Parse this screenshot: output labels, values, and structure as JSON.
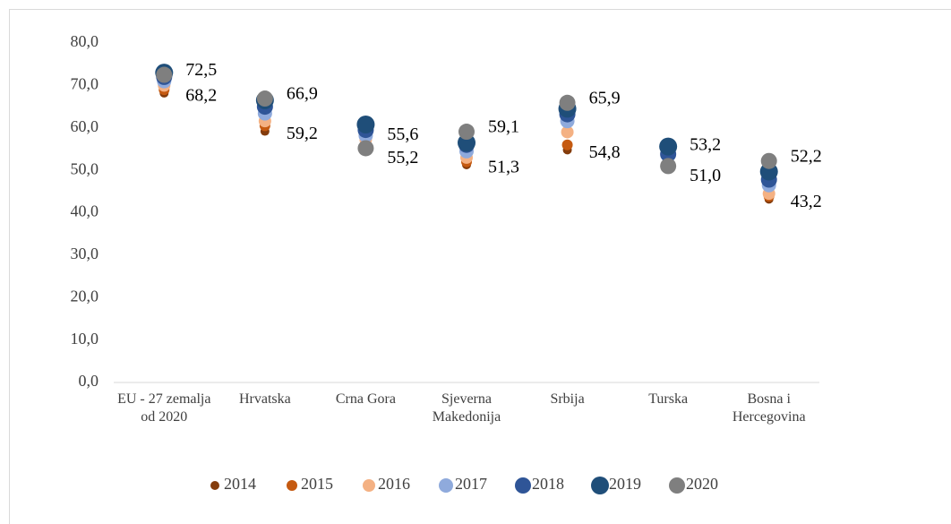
{
  "chart_data": {
    "type": "dot",
    "categories": [
      "EU - 27 zemalja od 2020",
      "Hrvatska",
      "Crna Gora",
      "Sjeverna Makedonija",
      "Srbija",
      "Turska",
      "Bosna i Hercegovina"
    ],
    "series": [
      {
        "name": "2014",
        "color": "#843c0c",
        "values": [
          68.2,
          59.2,
          55.6,
          51.3,
          54.8,
          53.2,
          43.2
        ],
        "value_labels": [
          "68,2",
          "59,2",
          "55,6",
          "51,3",
          "54,8",
          "53,2",
          "43,2"
        ]
      },
      {
        "name": "2015",
        "color": "#c55a11",
        "values": [
          69.0,
          60.5,
          56.3,
          52.0,
          56.0,
          53.5,
          43.9
        ]
      },
      {
        "name": "2016",
        "color": "#f4b183",
        "values": [
          70.0,
          61.6,
          57.2,
          53.0,
          59.0,
          53.8,
          44.5
        ]
      },
      {
        "name": "2017",
        "color": "#8faadc",
        "values": [
          71.0,
          63.4,
          58.2,
          54.5,
          61.6,
          54.0,
          46.5
        ]
      },
      {
        "name": "2018",
        "color": "#2f5597",
        "values": [
          72.0,
          65.0,
          59.5,
          56.0,
          63.2,
          53.8,
          47.8
        ]
      },
      {
        "name": "2019",
        "color": "#1f4e79",
        "values": [
          73.0,
          66.5,
          60.8,
          56.5,
          64.5,
          55.6,
          49.7
        ]
      },
      {
        "name": "2020",
        "color": "#7f7f7f",
        "values": [
          72.5,
          66.9,
          55.2,
          59.1,
          65.9,
          51.0,
          52.2
        ],
        "value_labels": [
          "72,5",
          "66,9",
          "55,2",
          "59,1",
          "65,9",
          "51,0",
          "52,2"
        ]
      }
    ],
    "ylim": [
      0,
      80
    ],
    "yticks": [
      {
        "value": 0,
        "label": "0,0"
      },
      {
        "value": 10,
        "label": "10,0"
      },
      {
        "value": 20,
        "label": "20,0"
      },
      {
        "value": 30,
        "label": "30,0"
      },
      {
        "value": 40,
        "label": "40,0"
      },
      {
        "value": 50,
        "label": "50,0"
      },
      {
        "value": 60,
        "label": "60,0"
      },
      {
        "value": 70,
        "label": "70,0"
      },
      {
        "value": 80,
        "label": "80,0"
      }
    ],
    "legend": "bottom"
  }
}
